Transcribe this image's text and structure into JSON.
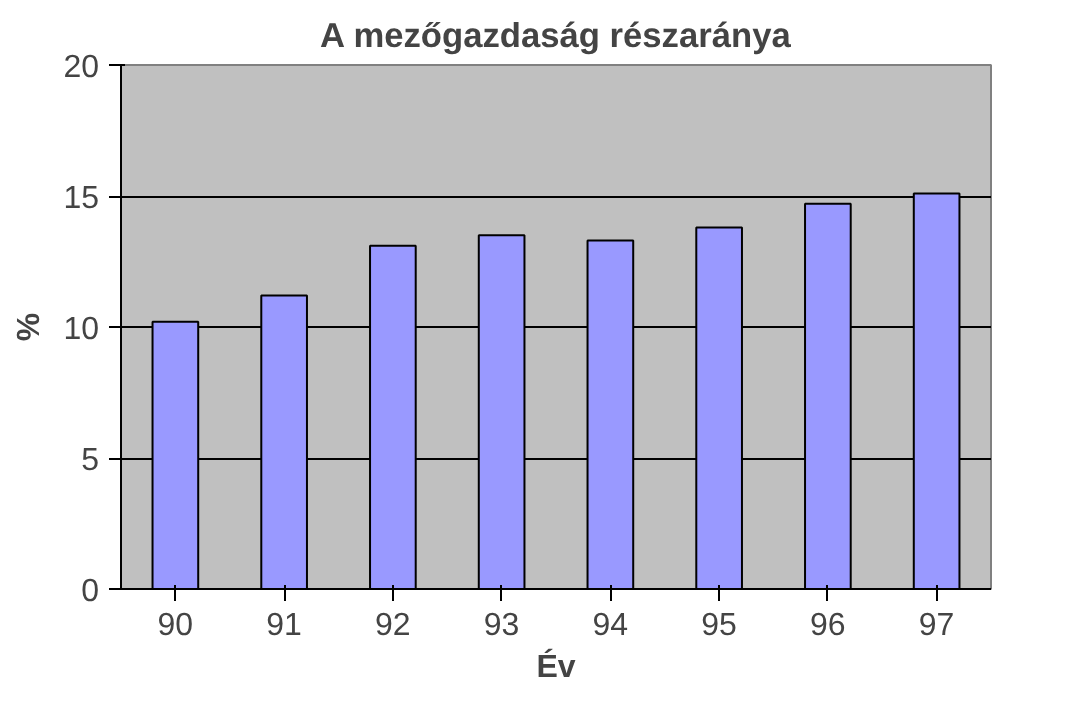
{
  "chart_data": {
    "type": "bar",
    "title": "A mezőgazdaság részaránya",
    "xlabel": "Év",
    "ylabel": "%",
    "categories": [
      "90",
      "91",
      "92",
      "93",
      "94",
      "95",
      "96",
      "97"
    ],
    "values": [
      10.2,
      11.2,
      13.1,
      13.5,
      13.3,
      13.8,
      14.7,
      15.1
    ],
    "color": "#9999ff",
    "ylim": [
      0,
      20
    ],
    "yticks": [
      0,
      5,
      10,
      15,
      20
    ],
    "grid": "y"
  }
}
